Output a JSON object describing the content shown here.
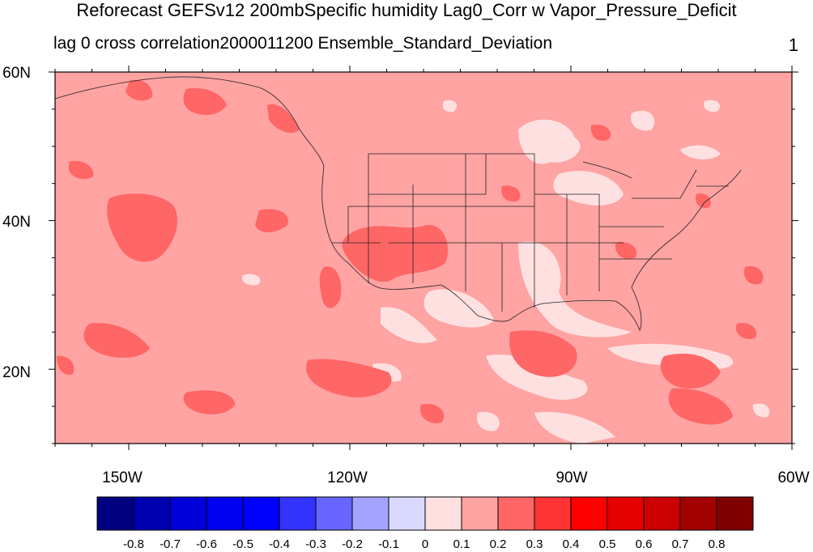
{
  "figure": {
    "title": "Reforecast GEFSv12 200mbSpecific humidity Lag0_Corr w Vapor_Pressure_Deficit",
    "left_subtitle": "lag 0 cross correlation2000011200 Ensemble_Standard_Deviation",
    "right_subtitle": "1"
  },
  "map": {
    "type": "contour-map",
    "region": "North America / Eastern Pacific",
    "lon_range": [
      -160,
      -60
    ],
    "lat_range": [
      10,
      60
    ],
    "x_ticks": [
      "150W",
      "120W",
      "90W",
      "60W"
    ],
    "y_ticks": [
      "20N",
      "40N",
      "60N"
    ],
    "background_class_color": "#ffa3a3",
    "boundaries": "US state lines and coastlines"
  },
  "colorbar": {
    "colors": [
      "#000080",
      "#0000b3",
      "#0000d9",
      "#0000f0",
      "#0000ff",
      "#3333ff",
      "#6666ff",
      "#a3a3ff",
      "#d9d9ff",
      "#ffe0e0",
      "#ffa3a3",
      "#ff6666",
      "#ff3333",
      "#ff0000",
      "#e60000",
      "#cc0000",
      "#a30000",
      "#800000"
    ],
    "labels": [
      "-0.8",
      "-0.7",
      "-0.6",
      "-0.5",
      "-0.4",
      "-0.3",
      "-0.2",
      "-0.1",
      "0",
      "0.1",
      "0.2",
      "0.3",
      "0.4",
      "0.5",
      "0.6",
      "0.7",
      "0.8"
    ]
  }
}
